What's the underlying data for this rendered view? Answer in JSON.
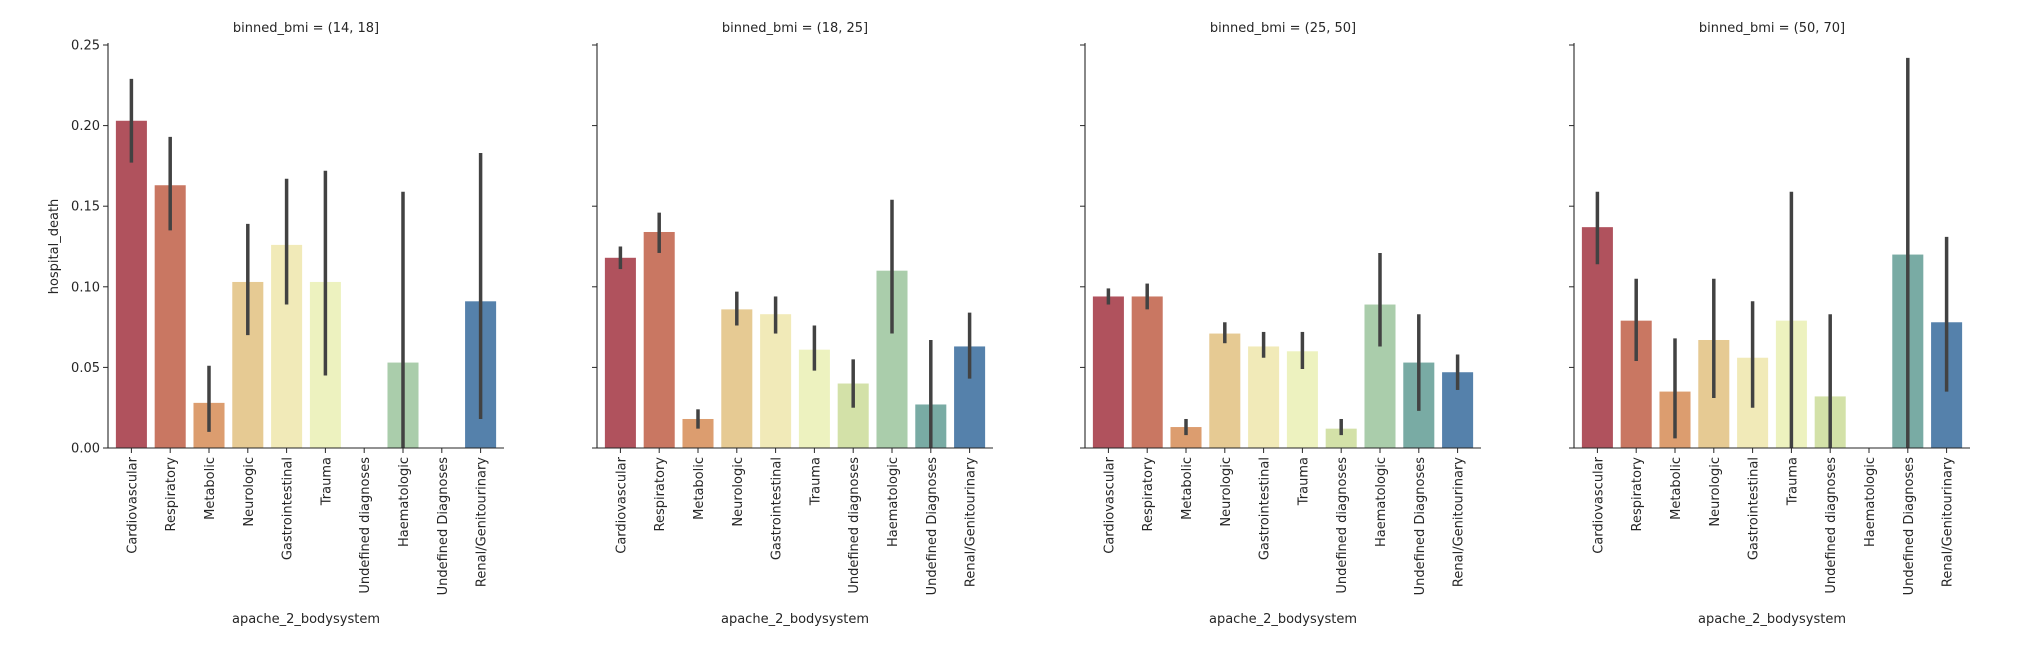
{
  "chart_data": [
    {
      "type": "bar",
      "title": "binned_bmi = (14, 18]",
      "xlabel": "apache_2_bodysystem",
      "ylabel": "hospital_death",
      "ylim": [
        0,
        0.25
      ],
      "yticks": [
        "0.00",
        "0.05",
        "0.10",
        "0.15",
        "0.20",
        "0.25"
      ],
      "categories": [
        "Cardiovascular",
        "Respiratory",
        "Metabolic",
        "Neurologic",
        "Gastrointestinal",
        "Trauma",
        "Undefined diagnoses",
        "Haematologic",
        "Undefined Diagnoses",
        "Renal/Genitourinary"
      ],
      "values": [
        0.203,
        0.163,
        0.028,
        0.103,
        0.126,
        0.103,
        null,
        0.053,
        null,
        0.091
      ],
      "ci_low": [
        0.177,
        0.135,
        0.01,
        0.07,
        0.089,
        0.045,
        null,
        0.0,
        null,
        0.018
      ],
      "ci_high": [
        0.229,
        0.193,
        0.051,
        0.139,
        0.167,
        0.172,
        null,
        0.159,
        null,
        0.183
      ]
    },
    {
      "type": "bar",
      "title": "binned_bmi = (18, 25]",
      "xlabel": "apache_2_bodysystem",
      "ylabel": "",
      "ylim": [
        0,
        0.25
      ],
      "categories": [
        "Cardiovascular",
        "Respiratory",
        "Metabolic",
        "Neurologic",
        "Gastrointestinal",
        "Trauma",
        "Undefined diagnoses",
        "Haematologic",
        "Undefined Diagnoses",
        "Renal/Genitourinary"
      ],
      "values": [
        0.118,
        0.134,
        0.018,
        0.086,
        0.083,
        0.061,
        0.04,
        0.11,
        0.027,
        0.063
      ],
      "ci_low": [
        0.111,
        0.121,
        0.012,
        0.076,
        0.071,
        0.048,
        0.025,
        0.071,
        0.0,
        0.043
      ],
      "ci_high": [
        0.125,
        0.146,
        0.024,
        0.097,
        0.094,
        0.076,
        0.055,
        0.154,
        0.067,
        0.084
      ]
    },
    {
      "type": "bar",
      "title": "binned_bmi = (25, 50]",
      "xlabel": "apache_2_bodysystem",
      "ylabel": "",
      "ylim": [
        0,
        0.25
      ],
      "categories": [
        "Cardiovascular",
        "Respiratory",
        "Metabolic",
        "Neurologic",
        "Gastrointestinal",
        "Trauma",
        "Undefined diagnoses",
        "Haematologic",
        "Undefined Diagnoses",
        "Renal/Genitourinary"
      ],
      "values": [
        0.094,
        0.094,
        0.013,
        0.071,
        0.063,
        0.06,
        0.012,
        0.089,
        0.053,
        0.047
      ],
      "ci_low": [
        0.089,
        0.086,
        0.008,
        0.065,
        0.056,
        0.049,
        0.008,
        0.063,
        0.023,
        0.036
      ],
      "ci_high": [
        0.099,
        0.102,
        0.018,
        0.078,
        0.072,
        0.072,
        0.018,
        0.121,
        0.083,
        0.058
      ]
    },
    {
      "type": "bar",
      "title": "binned_bmi = (50, 70]",
      "xlabel": "apache_2_bodysystem",
      "ylabel": "",
      "ylim": [
        0,
        0.25
      ],
      "categories": [
        "Cardiovascular",
        "Respiratory",
        "Metabolic",
        "Neurologic",
        "Gastrointestinal",
        "Trauma",
        "Undefined diagnoses",
        "Haematologic",
        "Undefined Diagnoses",
        "Renal/Genitourinary"
      ],
      "values": [
        0.137,
        0.079,
        0.035,
        0.067,
        0.056,
        0.079,
        0.032,
        null,
        0.12,
        0.078
      ],
      "ci_low": [
        0.114,
        0.054,
        0.006,
        0.031,
        0.025,
        0.0,
        0.0,
        null,
        0.0,
        0.035
      ],
      "ci_high": [
        0.159,
        0.105,
        0.068,
        0.105,
        0.091,
        0.159,
        0.083,
        null,
        0.242,
        0.131
      ]
    }
  ],
  "colors": [
    "#b0525d",
    "#c97762",
    "#dc9d6f",
    "#e6ca93",
    "#f1eab8",
    "#edf2bf",
    "#d3e1a8",
    "#aacdab",
    "#79aba4",
    "#5581ab"
  ],
  "errorbar_color": "#424242"
}
